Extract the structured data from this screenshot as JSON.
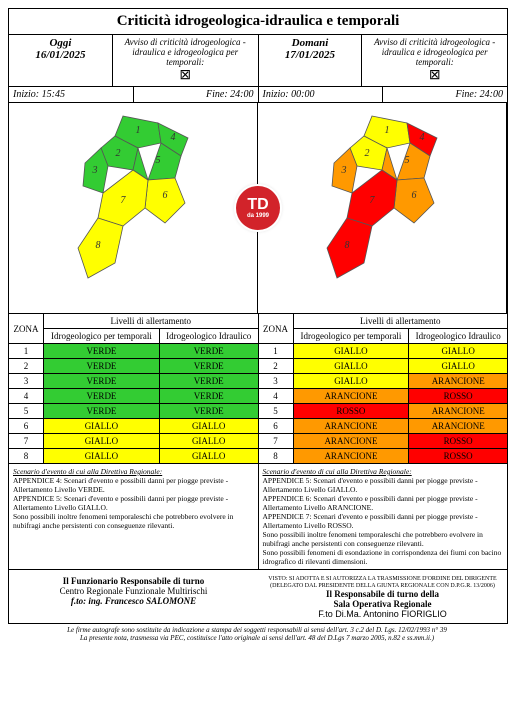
{
  "title": "Criticità idrogeologica-idraulica e temporali",
  "today": {
    "label": "Oggi",
    "date": "16/01/2025",
    "avviso": "Avviso di criticità idrogeologica - idraulica e idrogeologica per temporali:",
    "symbol": "⊠",
    "inizio_label": "Inizio:",
    "inizio": "15:45",
    "fine_label": "Fine:",
    "fine": "24:00"
  },
  "tomorrow": {
    "label": "Domani",
    "date": "17/01/2025",
    "avviso": "Avviso di criticità idrogeologica - idraulica e idrogeologica per temporali:",
    "symbol": "⊠",
    "inizio_label": "Inizio:",
    "inizio": "00:00",
    "fine_label": "Fine:",
    "fine": "24:00"
  },
  "colors": {
    "VERDE": "#33cc33",
    "GIALLO": "#ffff00",
    "ARANCIONE": "#ff9900",
    "ROSSO": "#ff0000"
  },
  "table_header": {
    "zona": "ZONA",
    "livelli": "Livelli di allertamento",
    "temporali": "Idrogeologico per temporali",
    "idraulico": "Idrogeologico Idraulico"
  },
  "zones_today": [
    {
      "z": "1",
      "a": "VERDE",
      "b": "VERDE"
    },
    {
      "z": "2",
      "a": "VERDE",
      "b": "VERDE"
    },
    {
      "z": "3",
      "a": "VERDE",
      "b": "VERDE"
    },
    {
      "z": "4",
      "a": "VERDE",
      "b": "VERDE"
    },
    {
      "z": "5",
      "a": "VERDE",
      "b": "VERDE"
    },
    {
      "z": "6",
      "a": "GIALLO",
      "b": "GIALLO"
    },
    {
      "z": "7",
      "a": "GIALLO",
      "b": "GIALLO"
    },
    {
      "z": "8",
      "a": "GIALLO",
      "b": "GIALLO"
    }
  ],
  "zones_tomorrow": [
    {
      "z": "1",
      "a": "GIALLO",
      "b": "GIALLO"
    },
    {
      "z": "2",
      "a": "GIALLO",
      "b": "GIALLO"
    },
    {
      "z": "3",
      "a": "GIALLO",
      "b": "ARANCIONE"
    },
    {
      "z": "4",
      "a": "ARANCIONE",
      "b": "ROSSO"
    },
    {
      "z": "5",
      "a": "ROSSO",
      "b": "ARANCIONE"
    },
    {
      "z": "6",
      "a": "ARANCIONE",
      "b": "ARANCIONE"
    },
    {
      "z": "7",
      "a": "ARANCIONE",
      "b": "ROSSO"
    },
    {
      "z": "8",
      "a": "ARANCIONE",
      "b": "ROSSO"
    }
  ],
  "map_today_regions": [
    {
      "n": "1",
      "c": "#33cc33"
    },
    {
      "n": "2",
      "c": "#33cc33"
    },
    {
      "n": "3",
      "c": "#33cc33"
    },
    {
      "n": "4",
      "c": "#33cc33"
    },
    {
      "n": "5",
      "c": "#33cc33"
    },
    {
      "n": "6",
      "c": "#ffff00"
    },
    {
      "n": "7",
      "c": "#ffff00"
    },
    {
      "n": "8",
      "c": "#ffff00"
    }
  ],
  "map_tomorrow_regions": [
    {
      "n": "1",
      "c": "#ffff00"
    },
    {
      "n": "2",
      "c": "#ffff00"
    },
    {
      "n": "3",
      "c": "#ff9900"
    },
    {
      "n": "4",
      "c": "#ff0000"
    },
    {
      "n": "5",
      "c": "#ff9900"
    },
    {
      "n": "6",
      "c": "#ff9900"
    },
    {
      "n": "7",
      "c": "#ff0000"
    },
    {
      "n": "8",
      "c": "#ff0000"
    }
  ],
  "scenario_title": "Scenario d'evento di cui alla Direttiva Regionale:",
  "scenario_today": [
    "APPENDICE 4: Scenari d'evento e possibili danni per piogge previste - Allertamento Livello VERDE.",
    "APPENDICE 5: Scenari d'evento e possibili danni per piogge previste - Allertamento Livello GIALLO.",
    "Sono possibili inoltre fenomeni temporaleschi che potrebbero evolvere in nubifragi anche persistenti con conseguenze rilevanti."
  ],
  "scenario_tomorrow": [
    "APPENDICE 5: Scenari d'evento e possibili danni per piogge previste - Allertamento Livello GIALLO.",
    "APPENDICE 6: Scenari d'evento e possibili danni per piogge previste - Allertamento Livello ARANCIONE.",
    "APPENDICE 7: Scenari d'evento e possibili danni per piogge previste - Allertamento Livello ROSSO.",
    "Sono possibili inoltre fenomeni temporaleschi che potrebbero evolvere in nubifragi anche persistenti con conseguenze rilevanti.",
    "Sono possibili fenomeni di esondazione in corrispondenza dei fiumi con bacino idrografico di rilevanti dimensioni."
  ],
  "sign_left": {
    "l1": "Il Funzionario Responsabile di turno",
    "l2": "Centro Regionale Funzionale Multirischi",
    "l3": "f.to: ing. Francesco SALOMONE"
  },
  "sign_right": {
    "t1": "VISTO: SI ADOTTA E SI AUTORIZZA LA TRASMISSIONE D'ORDINE DEL DIRIGENTE",
    "t2": "(DELEGATO DAL PRESIDENTE DELLA GIUNTA REGIONALE CON D.P.G.R. 13/2006)",
    "l1": "Il Responsabile di turno della",
    "l2": "Sala Operativa Regionale",
    "l3": "F.to Di.Ma. Antonino FIORIGLIO"
  },
  "footer": "Le firme autografe sono sostituite da indicazione a stampa dei soggetti responsabili ai sensi dell'art. 3 c.2 del D. Lgs. 12/02/1993 n° 39\nLa presente nota, trasmessa via PEC, costituisce l'atto originale ai sensi dell'art. 48 del D.Lgs 7 marzo 2005, n.82 e ss.mm.ii.)",
  "logo": {
    "main": "TD",
    "sub": "da 1999"
  }
}
